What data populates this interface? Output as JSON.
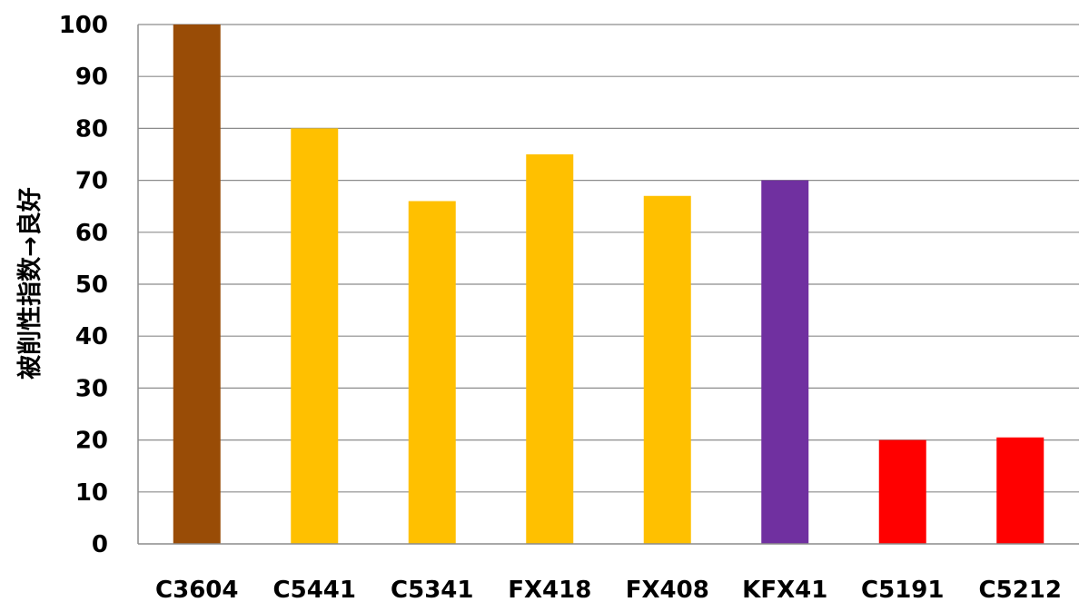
{
  "chart_data": {
    "type": "bar",
    "categories": [
      "C3604",
      "C5441",
      "C5341",
      "FX418",
      "FX408",
      "KFX41",
      "C5191",
      "C5212"
    ],
    "values": [
      100,
      80,
      66,
      75,
      67,
      70,
      20,
      20.5
    ],
    "colors": [
      "#994c06",
      "#ffc000",
      "#ffc000",
      "#ffc000",
      "#ffc000",
      "#7030a0",
      "#ff0000",
      "#ff0000"
    ],
    "title": "",
    "xlabel": "",
    "ylabel": "被削性指数→良好",
    "ylim": [
      0,
      100
    ],
    "yticks": [
      0,
      10,
      20,
      30,
      40,
      50,
      60,
      70,
      80,
      90,
      100
    ],
    "grid": true,
    "gridline_color": "#8c8c8c"
  }
}
